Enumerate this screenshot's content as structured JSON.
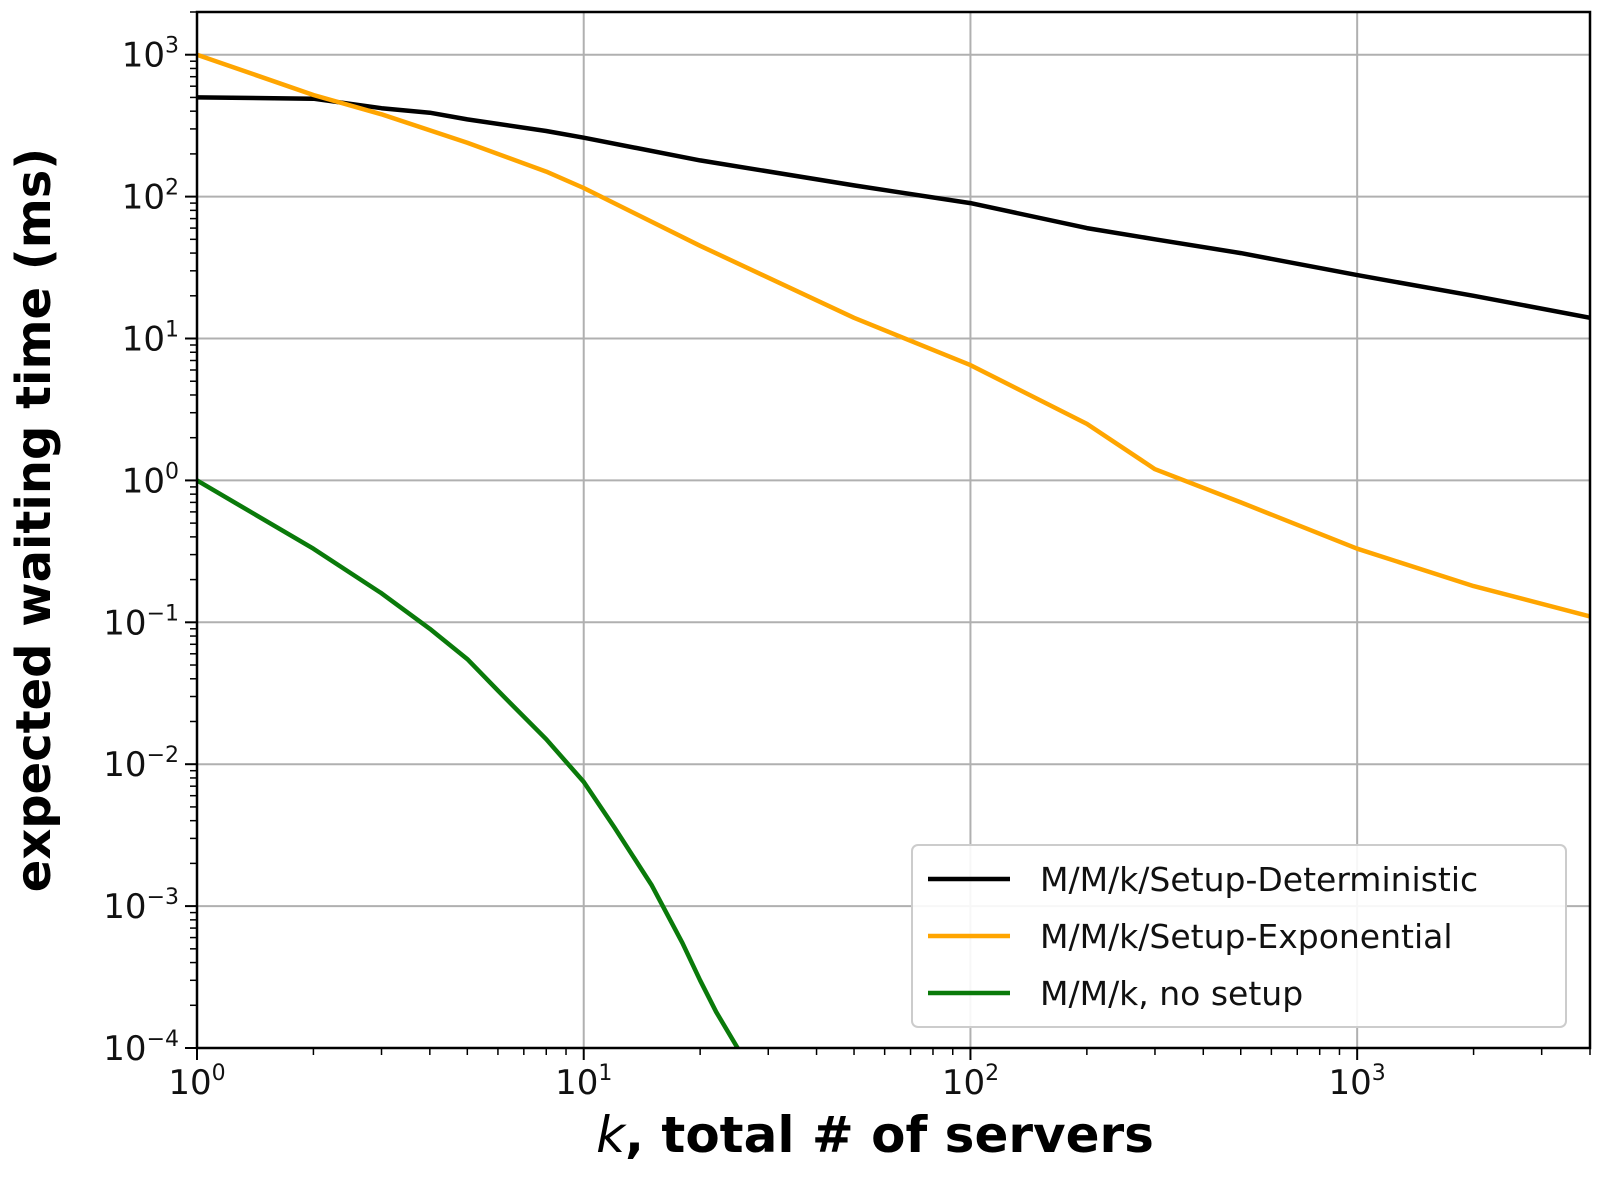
{
  "chart_data": {
    "type": "line",
    "xlabel_italic": "k",
    "xlabel_rest": ", total # of servers",
    "ylabel": "expected waiting time (ms)",
    "xscale": "log",
    "yscale": "log",
    "xlim": [
      1,
      4000
    ],
    "ylim": [
      0.0001,
      2000
    ],
    "x_tick_labels": [
      {
        "value": 1,
        "base": "10",
        "exp": "0"
      },
      {
        "value": 10,
        "base": "10",
        "exp": "1"
      },
      {
        "value": 100,
        "base": "10",
        "exp": "2"
      },
      {
        "value": 1000,
        "base": "10",
        "exp": "3"
      }
    ],
    "y_tick_labels": [
      {
        "value": 1000,
        "base": "10",
        "exp": "3"
      },
      {
        "value": 100,
        "base": "10",
        "exp": "2"
      },
      {
        "value": 10,
        "base": "10",
        "exp": "1"
      },
      {
        "value": 1,
        "base": "10",
        "exp": "0"
      },
      {
        "value": 0.1,
        "base": "10",
        "exp": "−1"
      },
      {
        "value": 0.01,
        "base": "10",
        "exp": "−2"
      },
      {
        "value": 0.001,
        "base": "10",
        "exp": "−3"
      },
      {
        "value": 0.0001,
        "base": "10",
        "exp": "−4"
      }
    ],
    "grid": true,
    "legend_position": "bottom-right",
    "series": [
      {
        "name": "M/M/k/Setup-Deterministic",
        "color": "#000000",
        "x": [
          1,
          2,
          3,
          4,
          5,
          8,
          10,
          20,
          50,
          100,
          200,
          300,
          500,
          1000,
          2000,
          4000
        ],
        "y": [
          500,
          490,
          420,
          390,
          350,
          290,
          260,
          180,
          120,
          90,
          60,
          50,
          40,
          28,
          20,
          14
        ]
      },
      {
        "name": "M/M/k/Setup-Exponential",
        "color": "#FFA500",
        "x": [
          1,
          2,
          3,
          5,
          8,
          10,
          20,
          50,
          100,
          200,
          300,
          500,
          1000,
          2000,
          4000
        ],
        "y": [
          1000,
          520,
          380,
          240,
          150,
          115,
          45,
          14,
          6.5,
          2.5,
          1.2,
          0.7,
          0.33,
          0.18,
          0.11
        ]
      },
      {
        "name": "M/M/k, no setup",
        "color": "#0A7A0A",
        "x": [
          1,
          2,
          3,
          4,
          5,
          6,
          8,
          10,
          12,
          15,
          18,
          20,
          22,
          25
        ],
        "y": [
          1.0,
          0.33,
          0.16,
          0.09,
          0.055,
          0.033,
          0.015,
          0.0075,
          0.0036,
          0.0014,
          0.00055,
          0.0003,
          0.00018,
          0.0001
        ]
      }
    ]
  }
}
